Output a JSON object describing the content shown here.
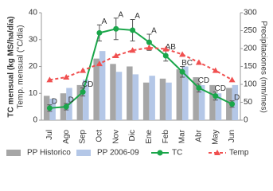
{
  "chart_data": {
    "type": "bar-line",
    "y_label": "TC mensual (kg MS/ha/día)",
    "y_label_2": "Temp. mensual (°C/día)",
    "y2_label": "Precipitaciones (mm/mes)",
    "categories": [
      "Jul",
      "Ago",
      "Sep",
      "Oct",
      "Nov",
      "Dic",
      "Ene",
      "Feb",
      "Mar",
      "Abr",
      "May",
      "Jun"
    ],
    "ylim": [
      0,
      40
    ],
    "yticks": [
      0,
      10,
      20,
      30,
      40
    ],
    "y2lim": [
      0,
      300
    ],
    "y2ticks": [
      0,
      50,
      100,
      150,
      200,
      250,
      300
    ],
    "series": [
      {
        "name": "PP Historico",
        "kind": "bar",
        "axis": "y2",
        "color": "#a6a6a6",
        "values": [
          68,
          75,
          98,
          172,
          157,
          150,
          105,
          116,
          142,
          120,
          98,
          90
        ]
      },
      {
        "name": "PP 2006-09",
        "kind": "bar",
        "axis": "y2",
        "color": "#b4c7e7",
        "values": [
          60,
          90,
          113,
          193,
          135,
          128,
          124,
          105,
          150,
          98,
          75,
          98
        ]
      },
      {
        "name": "TC",
        "kind": "line",
        "color": "#1aa64a",
        "values": [
          4.5,
          5,
          10.5,
          32.5,
          34,
          33.5,
          29,
          24,
          18,
          12,
          9,
          6
        ],
        "errors": [
          1.2,
          1.2,
          1.5,
          3,
          4,
          4,
          3,
          2,
          2,
          1.5,
          1.5,
          1.2
        ],
        "labels": [
          "D",
          "D",
          "CD",
          "A",
          "A",
          "A",
          "A",
          "AB",
          "BC",
          "CD",
          "CD",
          "D"
        ]
      },
      {
        "name": "Temp",
        "kind": "line",
        "dashed": true,
        "color": "#f05050",
        "values": [
          15,
          16,
          18.5,
          21,
          24,
          26,
          27,
          26.5,
          24.5,
          21.5,
          18.5,
          15
        ]
      }
    ]
  }
}
